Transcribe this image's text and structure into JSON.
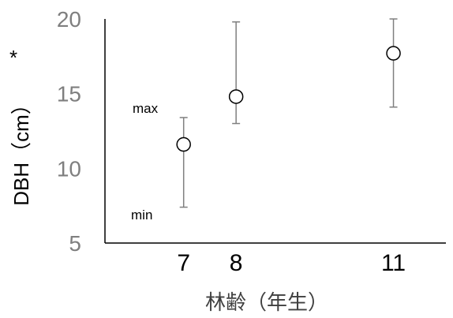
{
  "chart_data": {
    "type": "scatter",
    "title": "",
    "xlabel": "林齢（年生）",
    "ylabel": "DBH（cm）",
    "ylabel_suffix": "*",
    "ylim": [
      5,
      20
    ],
    "yticks": [
      "5",
      "10",
      "15",
      "20"
    ],
    "xlim": [
      5.5,
      12
    ],
    "grid": false,
    "legend": "none",
    "points": [
      {
        "x": 7,
        "y": 11.6,
        "max": 13.4,
        "min": 7.4,
        "x_label": "7"
      },
      {
        "x": 8,
        "y": 14.8,
        "max": 19.8,
        "min": 13.0,
        "x_label": "8"
      },
      {
        "x": 11,
        "y": 17.7,
        "max": 20.0,
        "min": 14.1,
        "x_label": "11"
      }
    ],
    "annotations": {
      "max": "max",
      "min": "min"
    },
    "colors": {
      "errorbar": "#7f7f7f",
      "marker_stroke": "#000000",
      "marker_fill": "#ffffff",
      "ytick": "#7f7f7f"
    }
  }
}
